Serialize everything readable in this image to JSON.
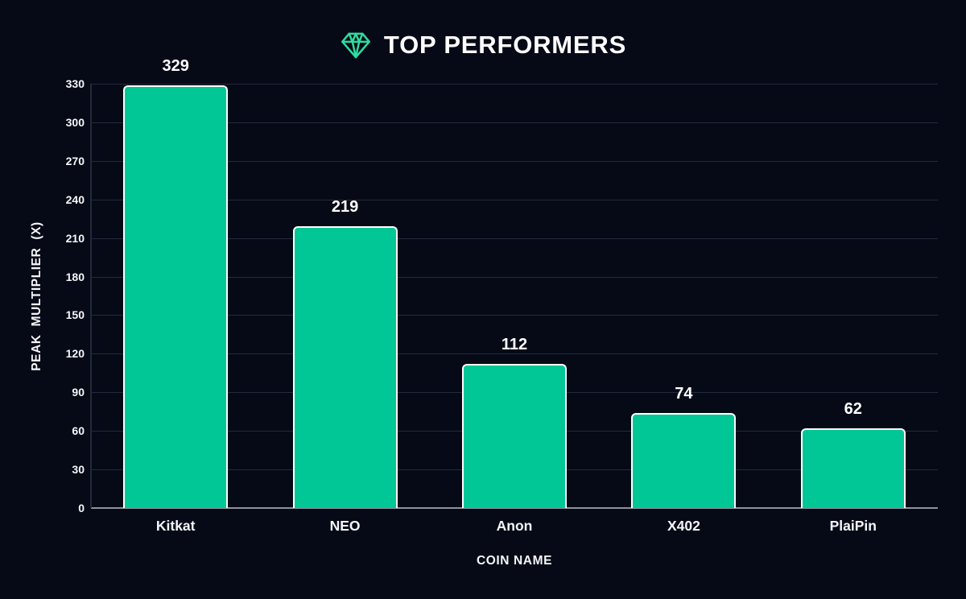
{
  "header": {
    "title": "TOP PERFORMERS",
    "icon": "gem-icon"
  },
  "colors": {
    "background": "#050A16",
    "bar_fill": "#00C795",
    "bar_border": "#FFFFFF",
    "gridline": "#232A3E",
    "axis_line": "#8D929C",
    "accent_icon": "#2EDCA0",
    "text": "#FFFFFF"
  },
  "chart_data": {
    "type": "bar",
    "title": "TOP PERFORMERS",
    "categories": [
      "Kitkat",
      "NEO",
      "Anon",
      "X402",
      "PlaiPin"
    ],
    "values": [
      329,
      219,
      112,
      74,
      62
    ],
    "xlabel": "COIN NAME",
    "ylabel": "PEAK MULTIPLIER (X)",
    "ylim": [
      0,
      330
    ],
    "ytick_step": 30,
    "yticks": [
      0,
      30,
      60,
      90,
      120,
      150,
      180,
      210,
      240,
      270,
      300,
      330
    ],
    "grid": "horizontal",
    "legend": "none",
    "value_labels": true
  }
}
